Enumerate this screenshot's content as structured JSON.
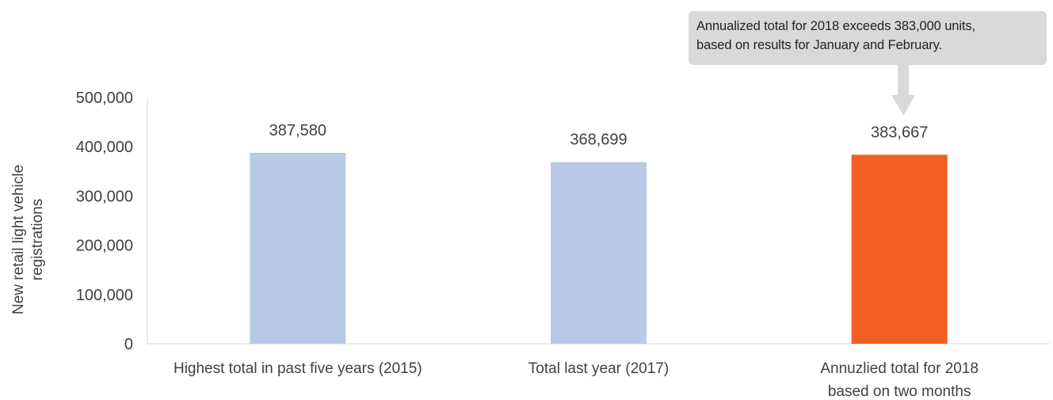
{
  "chart_data": {
    "type": "bar",
    "title": "",
    "categories": [
      [
        "Highest total in past five years (2015)"
      ],
      [
        "Total last year (2017)"
      ],
      [
        "Annuzlied total for 2018",
        "based on two months"
      ]
    ],
    "values": [
      387580,
      368699,
      383667
    ],
    "data_labels": [
      "387,580",
      "368,699",
      "383,667"
    ],
    "bar_colors": [
      "#b9c9e7",
      "#b9c9e7",
      "#f15f22"
    ],
    "ylabel": [
      "New retail light vehicle",
      "registrations"
    ],
    "xlabel": "",
    "ylim": [
      0,
      500000
    ],
    "yticks": [
      0,
      100000,
      200000,
      300000,
      400000,
      500000
    ],
    "ytick_labels": [
      "0",
      "100,000",
      "200,000",
      "300,000",
      "400,000",
      "500,000"
    ],
    "grid": false,
    "legend": "none",
    "annotation": {
      "lines": [
        "Annualized total for 2018 exceeds 383,000 units,",
        "based on results for January and February."
      ],
      "target_category_index": 2,
      "arrow_color": "#d9d9d9"
    }
  }
}
